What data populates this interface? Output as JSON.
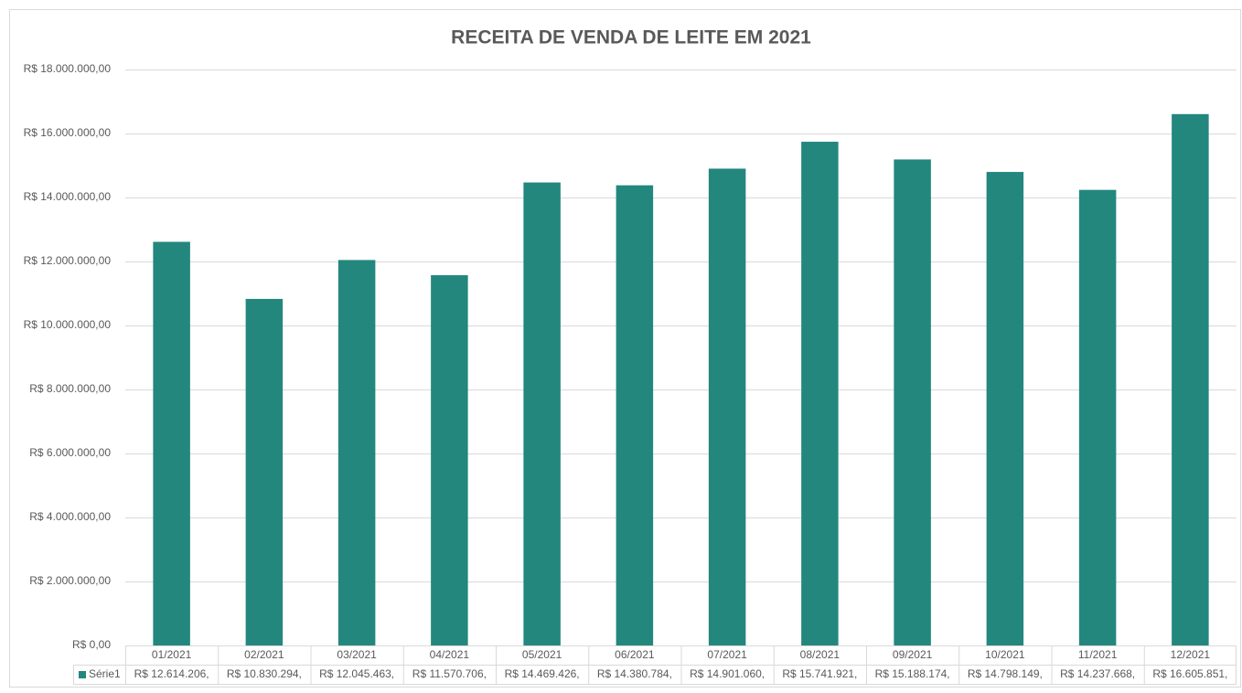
{
  "chart_data": {
    "type": "bar",
    "title": "RECEITA DE VENDA DE LEITE EM 2021",
    "categories": [
      "01/2021",
      "02/2021",
      "03/2021",
      "04/2021",
      "05/2021",
      "06/2021",
      "07/2021",
      "08/2021",
      "09/2021",
      "10/2021",
      "11/2021",
      "12/2021"
    ],
    "series": [
      {
        "name": "Série1",
        "color": "#23877e",
        "values": [
          12614206,
          10830294,
          12045463,
          11570706,
          14469426,
          14380784,
          14901060,
          15741921,
          15188174,
          14798149,
          14237668,
          16605851
        ],
        "value_labels": [
          "R$ 12.614.206,",
          "R$ 10.830.294,",
          "R$ 12.045.463,",
          "R$ 11.570.706,",
          "R$ 14.469.426,",
          "R$ 14.380.784,",
          "R$ 14.901.060,",
          "R$ 15.741.921,",
          "R$ 15.188.174,",
          "R$ 14.798.149,",
          "R$ 14.237.668,",
          "R$ 16.605.851,"
        ]
      }
    ],
    "ylim": [
      0,
      18000000
    ],
    "yticks": [
      {
        "value": 0,
        "label": "R$ 0,00"
      },
      {
        "value": 2000000,
        "label": "R$ 2.000.000,00"
      },
      {
        "value": 4000000,
        "label": "R$ 4.000.000,00"
      },
      {
        "value": 6000000,
        "label": "R$ 6.000.000,00"
      },
      {
        "value": 8000000,
        "label": "R$ 8.000.000,00"
      },
      {
        "value": 10000000,
        "label": "R$ 10.000.000,00"
      },
      {
        "value": 12000000,
        "label": "R$ 12.000.000,00"
      },
      {
        "value": 14000000,
        "label": "R$ 14.000.000,00"
      },
      {
        "value": 16000000,
        "label": "R$ 16.000.000,00"
      },
      {
        "value": 18000000,
        "label": "R$ 18.000.000,00"
      }
    ],
    "grid": true
  }
}
